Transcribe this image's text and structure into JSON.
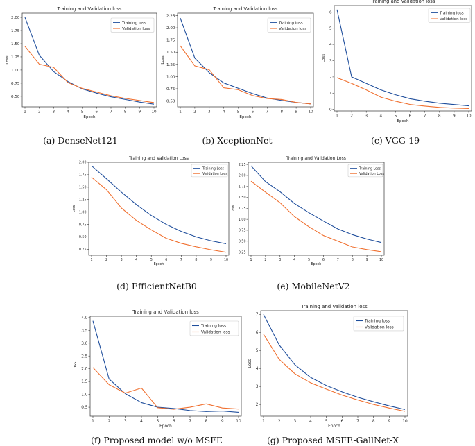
{
  "colors": {
    "training": "#1f4e9c",
    "validation": "#f07030"
  },
  "chart_data": [
    {
      "id": "a",
      "type": "line",
      "title": "Training and Validation loss",
      "xlabel": "Epoch",
      "ylabel": "Loss",
      "caption": "(a) DenseNet121",
      "legend_position": "top-right",
      "x": [
        1,
        2,
        3,
        4,
        5,
        6,
        7,
        8,
        9,
        10
      ],
      "xticks": [
        "1",
        "2",
        "3",
        "4",
        "5",
        "6",
        "7",
        "8",
        "9",
        "10"
      ],
      "ylim": [
        0.3,
        2.08
      ],
      "yticks": [
        "0.50",
        "0.75",
        "1.00",
        "1.25",
        "1.50",
        "1.75",
        "2.00"
      ],
      "ytick_values": [
        0.5,
        0.75,
        1.0,
        1.25,
        1.5,
        1.75,
        2.0
      ],
      "series": [
        {
          "name": "Training loss",
          "values": [
            2.0,
            1.28,
            0.97,
            0.78,
            0.64,
            0.56,
            0.49,
            0.44,
            0.39,
            0.35
          ]
        },
        {
          "name": "Validation loss",
          "values": [
            1.45,
            1.11,
            1.05,
            0.76,
            0.65,
            0.58,
            0.51,
            0.46,
            0.42,
            0.38
          ]
        }
      ]
    },
    {
      "id": "b",
      "type": "line",
      "title": "Training and Validation loss",
      "xlabel": "Epoch",
      "ylabel": "Loss",
      "caption": "(b) XceptionNet",
      "legend_position": "top-right",
      "x": [
        1,
        2,
        3,
        4,
        5,
        6,
        7,
        8,
        9,
        10
      ],
      "xticks": [
        "1",
        "2",
        "3",
        "4",
        "5",
        "6",
        "7",
        "8",
        "9",
        "10"
      ],
      "ylim": [
        0.38,
        2.3
      ],
      "yticks": [
        "0.50",
        "0.75",
        "1.00",
        "1.25",
        "1.50",
        "1.75",
        "2.00",
        "2.25"
      ],
      "ytick_values": [
        0.5,
        0.75,
        1.0,
        1.25,
        1.5,
        1.75,
        2.0,
        2.25
      ],
      "series": [
        {
          "name": "Training loss",
          "values": [
            2.2,
            1.38,
            1.08,
            0.87,
            0.76,
            0.65,
            0.56,
            0.51,
            0.47,
            0.44
          ]
        },
        {
          "name": "Validation loss",
          "values": [
            1.63,
            1.22,
            1.14,
            0.77,
            0.73,
            0.61,
            0.55,
            0.53,
            0.47,
            0.44
          ]
        }
      ]
    },
    {
      "id": "c",
      "type": "line",
      "title": "Training and Validation loss",
      "xlabel": "Epoch",
      "ylabel": "Loss",
      "caption": "(c) VGG-19",
      "legend_position": "top-right",
      "x": [
        1,
        2,
        3,
        4,
        5,
        6,
        7,
        8,
        9,
        10
      ],
      "xticks": [
        "1",
        "2",
        "3",
        "4",
        "5",
        "6",
        "7",
        "8",
        "9",
        "10"
      ],
      "ylim": [
        -0.1,
        6.4
      ],
      "yticks": [
        "0",
        "1",
        "2",
        "3",
        "4",
        "5",
        "6"
      ],
      "ytick_values": [
        0,
        1,
        2,
        3,
        4,
        5,
        6
      ],
      "series": [
        {
          "name": "Training loss",
          "values": [
            6.15,
            2.0,
            1.6,
            1.2,
            0.9,
            0.65,
            0.5,
            0.38,
            0.3,
            0.22
          ]
        },
        {
          "name": "Validation loss",
          "values": [
            1.95,
            1.6,
            1.2,
            0.75,
            0.5,
            0.3,
            0.2,
            0.12,
            0.08,
            0.05
          ]
        }
      ]
    },
    {
      "id": "d",
      "type": "line",
      "title": "Training and Validation Loss",
      "xlabel": "Epoch",
      "ylabel": "Loss",
      "caption": "(d) EfficientNetB0",
      "legend_position": "top-right",
      "x": [
        1,
        2,
        3,
        4,
        5,
        6,
        7,
        8,
        9,
        10
      ],
      "xticks": [
        "1",
        "2",
        "3",
        "4",
        "5",
        "6",
        "7",
        "8",
        "9",
        "10"
      ],
      "ylim": [
        0.13,
        2.0
      ],
      "yticks": [
        "0.25",
        "0.50",
        "0.75",
        "1.00",
        "1.25",
        "1.50",
        "1.75",
        "2.00"
      ],
      "ytick_values": [
        0.25,
        0.5,
        0.75,
        1.0,
        1.25,
        1.5,
        1.75,
        2.0
      ],
      "series": [
        {
          "name": "Training Loss",
          "values": [
            1.93,
            1.67,
            1.4,
            1.15,
            0.93,
            0.75,
            0.61,
            0.5,
            0.42,
            0.36
          ]
        },
        {
          "name": "Validation Loss",
          "values": [
            1.7,
            1.45,
            1.08,
            0.83,
            0.64,
            0.47,
            0.37,
            0.3,
            0.24,
            0.19
          ]
        }
      ]
    },
    {
      "id": "e",
      "type": "line",
      "title": "Training and Validation Loss",
      "xlabel": "Epoch",
      "ylabel": "Loss",
      "caption": "(e) MobileNetV2",
      "legend_position": "top-right",
      "x": [
        1,
        2,
        3,
        4,
        5,
        6,
        7,
        8,
        9,
        10
      ],
      "xticks": [
        "1",
        "2",
        "3",
        "4",
        "5",
        "6",
        "7",
        "8",
        "9",
        "10"
      ],
      "ylim": [
        0.18,
        2.3
      ],
      "yticks": [
        "0.25",
        "0.50",
        "0.75",
        "1.00",
        "1.25",
        "1.50",
        "1.75",
        "2.00",
        "2.25"
      ],
      "ytick_values": [
        0.25,
        0.5,
        0.75,
        1.0,
        1.25,
        1.5,
        1.75,
        2.0,
        2.25
      ],
      "series": [
        {
          "name": "Training Loss",
          "values": [
            2.22,
            1.86,
            1.63,
            1.36,
            1.15,
            0.96,
            0.78,
            0.65,
            0.55,
            0.47
          ]
        },
        {
          "name": "Validation Loss",
          "values": [
            1.87,
            1.62,
            1.38,
            1.06,
            0.83,
            0.63,
            0.5,
            0.37,
            0.31,
            0.26
          ]
        }
      ]
    },
    {
      "id": "f",
      "type": "line",
      "title": "Training and Validation loss",
      "xlabel": "Epoch",
      "ylabel": "Loss",
      "caption": "(f) Proposed model w/o MSFE",
      "legend_position": "top-right",
      "x": [
        1,
        2,
        3,
        4,
        5,
        6,
        7,
        8,
        9,
        10
      ],
      "xticks": [
        "1",
        "2",
        "3",
        "4",
        "5",
        "6",
        "7",
        "8",
        "9",
        "10"
      ],
      "ylim": [
        0.15,
        4.05
      ],
      "yticks": [
        "0.5",
        "1.0",
        "1.5",
        "2.0",
        "2.5",
        "3.0",
        "3.5",
        "4.0"
      ],
      "ytick_values": [
        0.5,
        1.0,
        1.5,
        2.0,
        2.5,
        3.0,
        3.5,
        4.0
      ],
      "series": [
        {
          "name": "Training loss",
          "values": [
            3.87,
            1.6,
            1.03,
            0.68,
            0.5,
            0.45,
            0.37,
            0.33,
            0.35,
            0.3
          ]
        },
        {
          "name": "Validation loss",
          "values": [
            2.05,
            1.38,
            1.05,
            1.25,
            0.48,
            0.42,
            0.5,
            0.63,
            0.47,
            0.43
          ]
        }
      ]
    },
    {
      "id": "g",
      "type": "line",
      "title": "Training and Validation loss",
      "xlabel": "Epoch",
      "ylabel": "Loss",
      "caption": "(g) Proposed MSFE-GallNet-X",
      "legend_position": "top-right",
      "x": [
        1,
        2,
        3,
        4,
        5,
        6,
        7,
        8,
        9,
        10
      ],
      "xticks": [
        "1",
        "2",
        "3",
        "4",
        "5",
        "6",
        "7",
        "8",
        "9",
        "10"
      ],
      "ylim": [
        1.35,
        7.2
      ],
      "yticks": [
        "2",
        "3",
        "4",
        "5",
        "6",
        "7"
      ],
      "ytick_values": [
        2,
        3,
        4,
        5,
        6,
        7
      ],
      "series": [
        {
          "name": "Training loss",
          "values": [
            7.0,
            5.3,
            4.2,
            3.5,
            3.05,
            2.7,
            2.4,
            2.15,
            1.92,
            1.72
          ]
        },
        {
          "name": "Validation loss",
          "values": [
            5.9,
            4.5,
            3.7,
            3.2,
            2.85,
            2.52,
            2.25,
            2.0,
            1.8,
            1.62
          ]
        }
      ]
    }
  ]
}
